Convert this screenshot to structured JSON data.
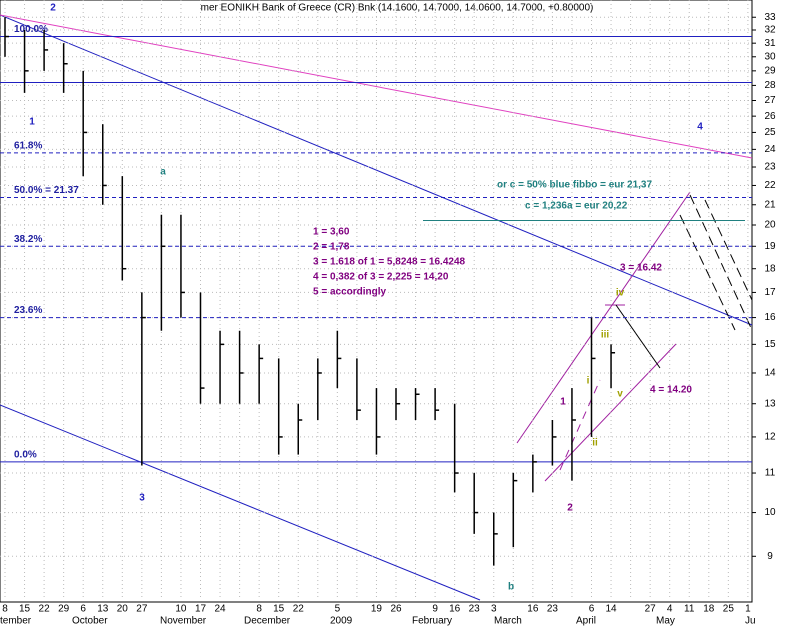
{
  "chart_data": {
    "type": "hlc",
    "title": "mer EONIKH Bank of Greece (CR) Bnk (14.1600, 14.7000, 14.0600, 14.7000, +0.80000)",
    "categories": [
      "8",
      "15",
      "22",
      "29",
      "6",
      "13",
      "20",
      "27",
      null,
      "10",
      "17",
      "24",
      null,
      "8",
      "15",
      "22",
      null,
      "5",
      null,
      "19",
      "26",
      null,
      "9",
      "16",
      "23",
      "3",
      null,
      "16",
      "23",
      null,
      "6",
      "14",
      null,
      "27",
      "4",
      "11",
      "18",
      "25",
      "1"
    ],
    "months": [
      "tember",
      "October",
      "November",
      "December",
      "2009",
      "February",
      "March",
      "April",
      "May",
      "Ju"
    ],
    "series": [
      {
        "name": "High",
        "color": "#000000",
        "values": [
          33,
          32,
          32,
          31,
          29,
          25.5,
          22.5,
          17,
          20.5,
          20.5,
          17,
          15.5,
          15.5,
          15,
          14.5,
          13,
          14.5,
          15.5,
          14.5,
          13.5,
          13.5,
          13.5,
          13.5,
          13,
          11,
          10,
          11,
          11.5,
          12.5,
          13.5,
          16,
          15,
          null,
          null,
          null,
          null,
          null,
          null,
          null
        ]
      },
      {
        "name": "Low",
        "color": "#000000",
        "values": [
          30,
          27.5,
          29,
          27.5,
          22.5,
          21,
          17.5,
          11.2,
          15.5,
          16,
          13,
          13,
          13,
          13,
          11.5,
          11.5,
          12.5,
          13.5,
          12.5,
          11.5,
          12.5,
          12.5,
          12.5,
          10.5,
          9.5,
          8.8,
          9.2,
          10.5,
          11.2,
          10.8,
          12,
          13.5,
          null,
          null,
          null,
          null,
          null,
          null,
          null
        ]
      },
      {
        "name": "Close",
        "color": "#000000",
        "values": [
          31.5,
          29,
          30.5,
          29.5,
          25,
          22,
          18,
          16,
          19,
          17,
          13.5,
          15,
          14,
          14.5,
          12,
          12.5,
          14,
          14.5,
          12.8,
          12,
          13,
          13.3,
          12.8,
          11,
          10,
          9.5,
          10.8,
          11.3,
          12,
          12.5,
          14.5,
          14.7,
          null,
          null,
          null,
          null,
          null,
          null,
          null
        ]
      }
    ],
    "log_scale": true,
    "ylim": [
      8.1,
      34.4
    ],
    "yticks": [
      9,
      10,
      11,
      12,
      13,
      14,
      15,
      16,
      17,
      18,
      19,
      20,
      21,
      22,
      23,
      24,
      25,
      26,
      27,
      28,
      29,
      30,
      31,
      32,
      33
    ],
    "grid": true,
    "levels": [
      {
        "label": "100.0%",
        "value": 31.5,
        "style": "solid"
      },
      {
        "label": "61.8%",
        "value": 23.8,
        "style": "dashed"
      },
      {
        "label": "50.0% = 21.37",
        "value": 21.37,
        "style": "dashed"
      },
      {
        "label": "38.2%",
        "value": 19.0,
        "style": "dashed"
      },
      {
        "label": "23.6%",
        "value": 16.0,
        "style": "dashed"
      },
      {
        "label": "0.0%",
        "value": 11.3,
        "style": "solid"
      }
    ],
    "extra_lines": [
      28.2
    ],
    "target_line": 20.22,
    "wave_labels": [
      "2",
      "1",
      "a",
      "3",
      "b",
      "2",
      "4",
      "1",
      "i",
      "ii",
      "iii",
      "iv",
      "v"
    ],
    "notes": [
      "1 = 3,60",
      "2 = 1,78",
      "3 = 1.618 of 1 = 5,8248 = 16.4248",
      "4 =  0,382 of 3 = 2,225 = 14,20",
      "5 = accordingly"
    ],
    "targets": [
      "or c = 50% blue fibbo = eur 21,37",
      "c = 1,236a = eur 20,22",
      "3 = 16.42",
      "4 = 14.20"
    ]
  }
}
